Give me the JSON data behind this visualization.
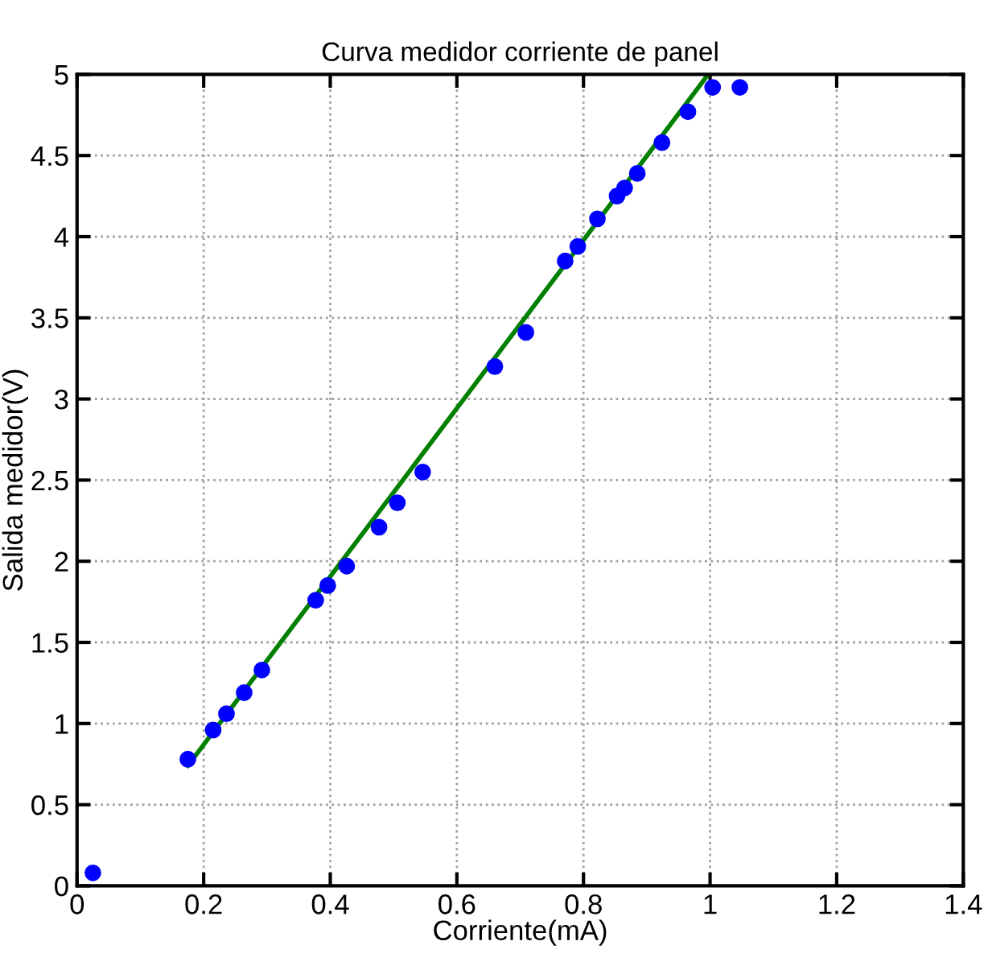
{
  "chart_data": {
    "type": "scatter",
    "title": "Curva medidor corriente de panel",
    "xlabel": "Corriente(mA)",
    "ylabel": "Salida medidor(V)",
    "series": [
      {
        "color": "#0000ff",
        "marker": "circle",
        "x": [
          0.025,
          0.175,
          0.215,
          0.236,
          0.264,
          0.292,
          0.377,
          0.396,
          0.426,
          0.477,
          0.506,
          0.546,
          0.66,
          0.709,
          0.771,
          0.791,
          0.822,
          0.853,
          0.865,
          0.885,
          0.924,
          0.965,
          1.004,
          1.047
        ],
        "values": [
          0.08,
          0.78,
          0.96,
          1.06,
          1.19,
          1.33,
          1.76,
          1.85,
          1.97,
          2.21,
          2.36,
          2.55,
          3.2,
          3.41,
          3.85,
          3.94,
          4.11,
          4.25,
          4.3,
          4.39,
          4.58,
          4.77,
          4.92,
          4.92
        ]
      },
      {
        "type": "line",
        "color": "#007f00",
        "marker": "none",
        "line_style": "solid",
        "x": [
          0.175,
          0.997
        ],
        "values": [
          0.74,
          5.0
        ]
      }
    ],
    "xlim": [
      0,
      1.4
    ],
    "ylim": [
      0,
      5
    ],
    "xticks": [
      0,
      0.2,
      0.4,
      0.6,
      0.8,
      1,
      1.2,
      1.4
    ],
    "yticks": [
      0,
      0.5,
      1,
      1.5,
      2,
      2.5,
      3,
      3.5,
      4,
      4.5,
      5
    ],
    "grid": true
  }
}
